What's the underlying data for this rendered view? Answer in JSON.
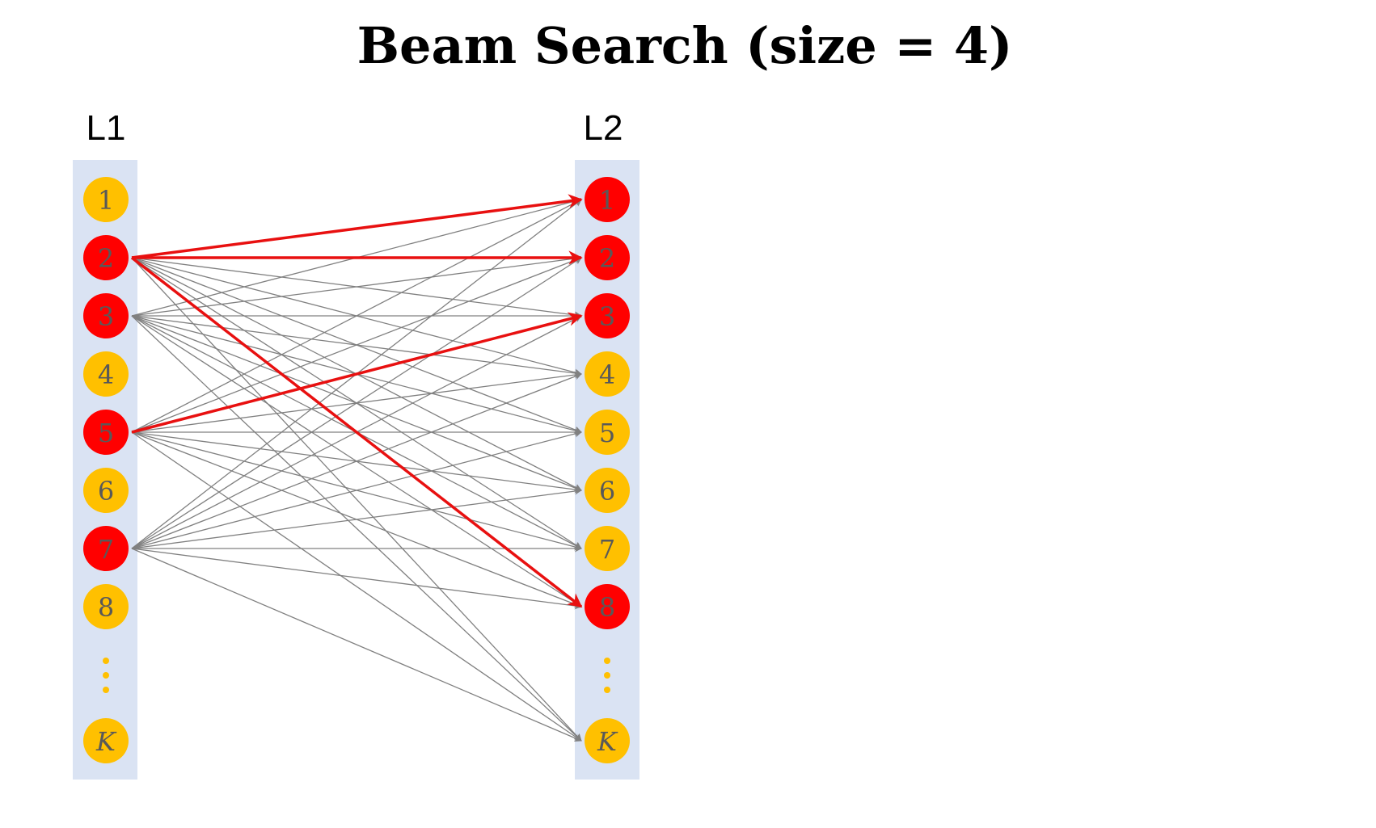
{
  "title": "Beam Search (size = 4)",
  "colors": {
    "column_bg": "#dae3f3",
    "node_default": "#ffc000",
    "node_selected": "#ff0000",
    "node_text": "#595959",
    "edge_default": "#808080",
    "edge_selected": "#e81010",
    "ellipsis": "#ffc000",
    "title": "#000000"
  },
  "layers": [
    {
      "id": "L1",
      "label": "L1",
      "nodes": [
        {
          "label": "1",
          "selected": false
        },
        {
          "label": "2",
          "selected": true
        },
        {
          "label": "3",
          "selected": true
        },
        {
          "label": "4",
          "selected": false
        },
        {
          "label": "5",
          "selected": true
        },
        {
          "label": "6",
          "selected": false
        },
        {
          "label": "7",
          "selected": true
        },
        {
          "label": "8",
          "selected": false
        },
        {
          "label": "⋮",
          "ellipsis": true
        },
        {
          "label": "K",
          "selected": false,
          "italic": true
        }
      ]
    },
    {
      "id": "L2",
      "label": "L2",
      "nodes": [
        {
          "label": "1",
          "selected": true
        },
        {
          "label": "2",
          "selected": true
        },
        {
          "label": "3",
          "selected": true
        },
        {
          "label": "4",
          "selected": false
        },
        {
          "label": "5",
          "selected": false
        },
        {
          "label": "6",
          "selected": false
        },
        {
          "label": "7",
          "selected": false
        },
        {
          "label": "8",
          "selected": true
        },
        {
          "label": "⋮",
          "ellipsis": true
        },
        {
          "label": "K",
          "selected": false,
          "italic": true
        }
      ]
    }
  ],
  "edges": {
    "sources": [
      "2",
      "3",
      "5",
      "7"
    ],
    "targets": [
      "1",
      "2",
      "3",
      "4",
      "5",
      "6",
      "7",
      "8",
      "K"
    ],
    "selected": [
      {
        "from": "2",
        "to": "1"
      },
      {
        "from": "2",
        "to": "2"
      },
      {
        "from": "2",
        "to": "8"
      },
      {
        "from": "5",
        "to": "3"
      }
    ]
  }
}
